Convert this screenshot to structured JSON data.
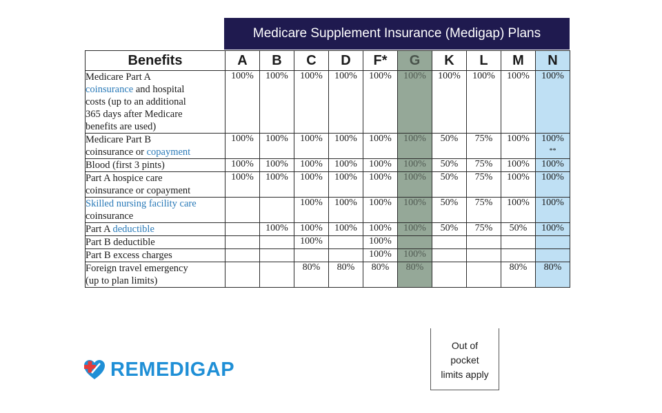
{
  "title": "Medicare Supplement Insurance (Medigap) Plans",
  "header": {
    "benefits": "Benefits",
    "plans": [
      "A",
      "B",
      "C",
      "D",
      "F*",
      "G",
      "K",
      "L",
      "M",
      "N"
    ]
  },
  "rows": [
    {
      "benefit_lines": [
        {
          "text": "Medicare Part A"
        },
        {
          "text": "coinsurance",
          "link": true
        },
        {
          "text": " and hospital"
        },
        {
          "text": "costs (up to an additional"
        },
        {
          "text": "365 days after Medicare"
        },
        {
          "text": "benefits are used)"
        }
      ],
      "values": [
        "100%",
        "100%",
        "100%",
        "100%",
        "100%",
        "100%",
        "100%",
        "100%",
        "100%",
        "100%"
      ]
    },
    {
      "benefit_lines": [
        {
          "text": "Medicare Part B"
        },
        {
          "text": "coinsurance or "
        },
        {
          "text": "copayment",
          "link": true
        }
      ],
      "values": [
        "100%",
        "100%",
        "100%",
        "100%",
        "100%",
        "100%",
        "50%",
        "75%",
        "100%",
        "100%"
      ],
      "n_note": "**"
    },
    {
      "benefit_lines": [
        {
          "text": "Blood (first 3 pints)"
        }
      ],
      "values": [
        "100%",
        "100%",
        "100%",
        "100%",
        "100%",
        "100%",
        "50%",
        "75%",
        "100%",
        "100%"
      ]
    },
    {
      "benefit_lines": [
        {
          "text": "Part A hospice care"
        },
        {
          "text": "coinsurance or copayment"
        }
      ],
      "values": [
        "100%",
        "100%",
        "100%",
        "100%",
        "100%",
        "100%",
        "50%",
        "75%",
        "100%",
        "100%"
      ]
    },
    {
      "benefit_lines": [
        {
          "text": "Skilled nursing facility care",
          "link": true
        },
        {
          "text": "coinsurance"
        }
      ],
      "values": [
        "",
        "",
        "100%",
        "100%",
        "100%",
        "100%",
        "50%",
        "75%",
        "100%",
        "100%"
      ]
    },
    {
      "benefit_lines": [
        {
          "text": "Part A "
        },
        {
          "text": "deductible",
          "link": true
        }
      ],
      "values": [
        "",
        "100%",
        "100%",
        "100%",
        "100%",
        "100%",
        "50%",
        "75%",
        "50%",
        "100%"
      ]
    },
    {
      "benefit_lines": [
        {
          "text": "Part B deductible"
        }
      ],
      "values": [
        "",
        "",
        "100%",
        "",
        "100%",
        "",
        "",
        "",
        "",
        ""
      ]
    },
    {
      "benefit_lines": [
        {
          "text": "Part B excess charges"
        }
      ],
      "values": [
        "",
        "",
        "",
        "",
        "100%",
        "100%",
        "",
        "",
        "",
        ""
      ]
    },
    {
      "benefit_lines": [
        {
          "text": "Foreign travel emergency"
        },
        {
          "text": "(up to plan limits)"
        }
      ],
      "values": [
        "",
        "",
        "80%",
        "80%",
        "80%",
        "80%",
        "",
        "",
        "80%",
        "80%"
      ]
    }
  ],
  "out_of_pocket_note": [
    "Out of",
    "pocket",
    "limits apply"
  ],
  "brand": {
    "name": "REMEDIGAP",
    "logo_icon": "medical-cross-heart-icon"
  },
  "colors": {
    "banner": "#1f1a4f",
    "plan_g_highlight": "#95a898",
    "plan_n_highlight": "#bfe0f4",
    "link": "#2a7ab8",
    "brand": "#1f8fd6"
  }
}
